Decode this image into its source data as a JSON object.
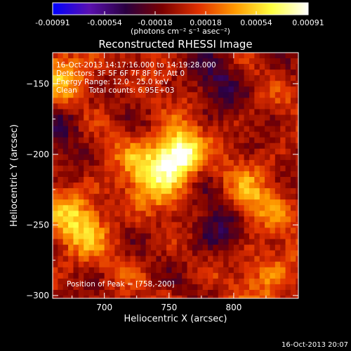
{
  "chart_data": {
    "type": "heatmap",
    "title": "Reconstructed RHESSI Image",
    "xlabel": "Heliocentric X (arcsec)",
    "ylabel": "Heliocentric Y (arcsec)",
    "xlim": [
      660,
      850
    ],
    "ylim": [
      -302,
      -128
    ],
    "x_ticks": [
      700,
      750,
      800
    ],
    "y_ticks": [
      -150,
      -200,
      -250,
      -300
    ],
    "colorbar": {
      "range": [
        -0.00091,
        0.00091
      ],
      "tick_labels": [
        "-0.00091",
        "-0.00054",
        "-0.00018",
        "0.00018",
        "0.00054",
        "0.00091"
      ],
      "unit_label": "(photons cm⁻² s⁻¹ asec⁻²)",
      "colormap": [
        "#0000ff",
        "#5a10b0",
        "#2a0040",
        "#7a0000",
        "#e03000",
        "#ff9a00",
        "#ffff40",
        "#ffffff"
      ]
    },
    "annotations": [
      "16-Oct-2013 14:17:16.000 to 14:19:28.000",
      "Detectors: 3F 5F 6F 7F 8F 9F, Att 0",
      "Energy Range: 12.0 - 25.0 keV",
      "Clean     Total counts: 6.95E+03"
    ],
    "peak_label": "Position of Peak = [758,-200]",
    "peak_position": [
      758,
      -200
    ],
    "peak_value": 0.00091,
    "features": [
      {
        "name": "main-flare-source",
        "x": 758,
        "y": -200,
        "value": 0.00091
      },
      {
        "name": "secondary-source",
        "x": 738,
        "y": -212,
        "value": 0.0006
      },
      {
        "name": "west-source",
        "x": 680,
        "y": -250,
        "value": 0.0005
      },
      {
        "name": "upper-left-source",
        "x": 668,
        "y": -145,
        "value": 0.00045
      },
      {
        "name": "right-source",
        "x": 810,
        "y": -235,
        "value": 0.00045
      },
      {
        "name": "lower-right-source",
        "x": 830,
        "y": -285,
        "value": 0.0003
      },
      {
        "name": "negative-region",
        "x": 790,
        "y": -250,
        "value": -0.00045
      },
      {
        "name": "negative-region-top",
        "x": 790,
        "y": -145,
        "value": -0.0003
      },
      {
        "name": "negative-region-left",
        "x": 668,
        "y": -175,
        "value": -0.0003
      }
    ]
  },
  "timestamp": "16-Oct-2013 20:07",
  "colors": {
    "background": "#000000",
    "foreground": "#ffffff"
  }
}
